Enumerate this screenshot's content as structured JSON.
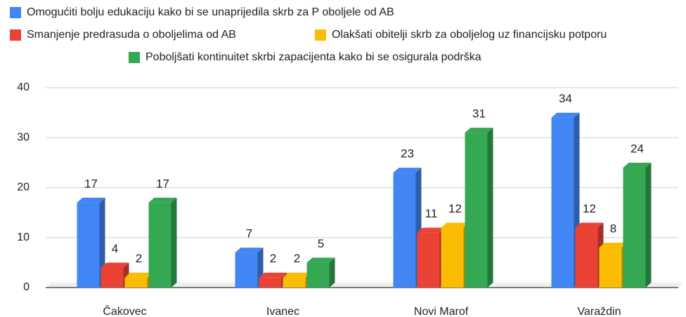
{
  "chart_data": {
    "type": "bar3d",
    "categories": [
      "Čakovec",
      "Ivanec",
      "Novi Marof",
      "Varaždin"
    ],
    "series": [
      {
        "name": "Omogućiti bolju edukaciju kako bi se unaprijedila skrb za P oboljele od AB",
        "color": "#4285f4",
        "values": [
          17,
          7,
          23,
          34
        ]
      },
      {
        "name": "Smanjenje predrasuda o oboljelima od AB",
        "color": "#ea4335",
        "values": [
          4,
          2,
          11,
          12
        ]
      },
      {
        "name": "Olakšati obitelji skrb za oboljelog uz financijsku potporu",
        "color": "#fbbc04",
        "values": [
          2,
          2,
          12,
          8
        ]
      },
      {
        "name": "Poboljšati kontinuitet skrbi zapacijenta kako bi se osigurala podrška",
        "color": "#34a853",
        "values": [
          17,
          5,
          31,
          24
        ]
      }
    ],
    "ylim": [
      0,
      40
    ],
    "yticks": [
      0,
      10,
      20,
      30,
      40
    ],
    "grid": true,
    "legend": "top"
  }
}
